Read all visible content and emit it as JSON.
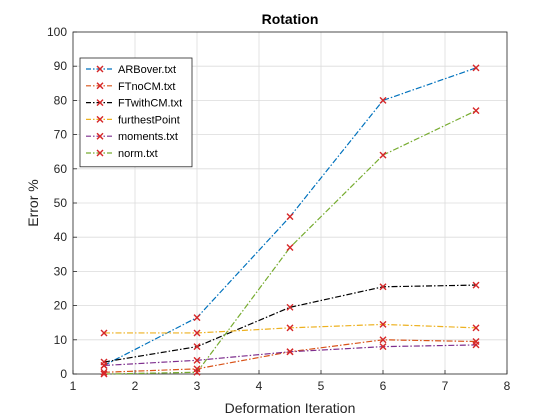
{
  "chart_data": {
    "type": "line",
    "title": "Rotation",
    "xlabel": "Deformation Iteration",
    "ylabel": "Error %",
    "xlim": [
      1,
      8
    ],
    "ylim": [
      0,
      100
    ],
    "xticks": [
      1,
      2,
      3,
      4,
      5,
      6,
      7,
      8
    ],
    "yticks": [
      0,
      10,
      20,
      30,
      40,
      50,
      60,
      70,
      80,
      90,
      100
    ],
    "grid": true,
    "legend_position": "top-left",
    "marker": "x",
    "marker_color": "#d62728",
    "x": [
      1.5,
      3,
      4.5,
      6,
      7.5
    ],
    "series": [
      {
        "name": "ARBover.txt",
        "color": "#0072bd",
        "values": [
          2.5,
          16.5,
          46,
          80,
          89.5
        ]
      },
      {
        "name": "FTnoCM.txt",
        "color": "#d95319",
        "values": [
          0.5,
          1.5,
          6.5,
          10,
          9.5
        ]
      },
      {
        "name": "FTwithCM.txt",
        "color": "#000000",
        "values": [
          3.5,
          8,
          19.5,
          25.5,
          26
        ]
      },
      {
        "name": "furthestPoint",
        "color": "#edb120",
        "values": [
          12,
          12,
          13.5,
          14.5,
          13.5
        ]
      },
      {
        "name": "moments.txt",
        "color": "#7e2f8e",
        "values": [
          2.5,
          4,
          6.5,
          8,
          8.5
        ]
      },
      {
        "name": "norm.txt",
        "color": "#77ac30",
        "values": [
          0,
          0.5,
          37,
          64,
          77
        ]
      }
    ]
  }
}
